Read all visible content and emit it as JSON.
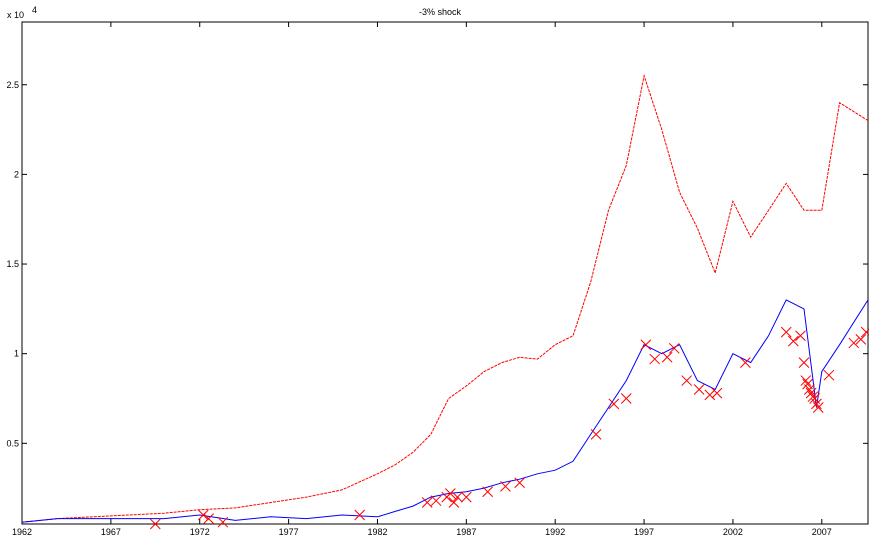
{
  "chart_data": {
    "type": "line",
    "title": "-3% shock",
    "xlabel": "",
    "ylabel": "",
    "y_exponent_label": "x 10",
    "y_exponent_power": "4",
    "x_ticks": [
      "1962",
      "1967",
      "1972",
      "1977",
      "1982",
      "1987",
      "1992",
      "1997",
      "2002",
      "2007"
    ],
    "x_tick_values": [
      1962,
      1967,
      1972,
      1977,
      1982,
      1987,
      1992,
      1997,
      2002,
      2007
    ],
    "y_ticks": [
      "0.5",
      "1",
      "1.5",
      "2",
      "2.5"
    ],
    "y_tick_values": [
      0.5,
      1,
      1.5,
      2,
      2.5
    ],
    "xlim": [
      1962,
      2009.6
    ],
    "ylim": [
      0.05,
      2.85
    ],
    "grid": false,
    "legend": "none",
    "colors": {
      "red_series": "#ff0000",
      "blue_series": "#0000ff",
      "marker": "#ff0000"
    },
    "series": [
      {
        "color": "#ff0000",
        "style": "dashed",
        "x": [
          1962,
          1964,
          1966,
          1968,
          1970,
          1972,
          1974,
          1976,
          1978,
          1980,
          1982,
          1983,
          1984,
          1985,
          1986,
          1987,
          1988,
          1989,
          1990,
          1991,
          1992,
          1993,
          1994,
          1995,
          1996,
          1997,
          1998,
          1999,
          2000,
          2001,
          2002,
          2003,
          2004,
          2005,
          2006,
          2007,
          2008,
          2009.6
        ],
        "y": [
          0.06,
          0.08,
          0.09,
          0.1,
          0.11,
          0.13,
          0.14,
          0.17,
          0.2,
          0.24,
          0.33,
          0.38,
          0.45,
          0.55,
          0.75,
          0.82,
          0.9,
          0.95,
          0.98,
          0.97,
          1.05,
          1.1,
          1.4,
          1.8,
          2.05,
          2.55,
          2.25,
          1.9,
          1.7,
          1.45,
          1.85,
          1.65,
          1.8,
          1.95,
          1.8,
          1.8,
          2.4,
          2.3
        ]
      },
      {
        "color": "#0000ff",
        "style": "solid",
        "x": [
          1962,
          1964,
          1966,
          1968,
          1970,
          1972,
          1974,
          1976,
          1978,
          1980,
          1982,
          1983,
          1984,
          1985,
          1986,
          1987,
          1988,
          1989,
          1990,
          1991,
          1992,
          1993,
          1994,
          1995,
          1996,
          1997,
          1998,
          1999,
          2000,
          2001,
          2002,
          2003,
          2004,
          2005,
          2006,
          2006.7,
          2007,
          2008,
          2009.6
        ],
        "y": [
          0.06,
          0.08,
          0.08,
          0.08,
          0.08,
          0.1,
          0.07,
          0.09,
          0.08,
          0.1,
          0.09,
          0.12,
          0.15,
          0.2,
          0.22,
          0.23,
          0.25,
          0.28,
          0.3,
          0.33,
          0.35,
          0.4,
          0.55,
          0.7,
          0.85,
          1.05,
          1.0,
          1.05,
          0.85,
          0.8,
          1.0,
          0.95,
          1.1,
          1.3,
          1.25,
          0.7,
          0.9,
          1.05,
          1.3
        ]
      }
    ],
    "shock_markers": {
      "symbol": "x",
      "x": [
        1969.5,
        1972.2,
        1972.5,
        1973.3,
        1981.0,
        1984.8,
        1985.3,
        1985.9,
        1986.1,
        1986.3,
        1986.5,
        1987.0,
        1988.2,
        1989.2,
        1990.0,
        1994.3,
        1995.3,
        1996.0,
        1997.1,
        1997.6,
        1998.3,
        1998.7,
        1999.4,
        2000.1,
        2000.7,
        2001.1,
        2002.7,
        2005.0,
        2005.4,
        2005.8,
        2006.0,
        2006.1,
        2006.2,
        2006.3,
        2006.4,
        2006.5,
        2006.6,
        2006.7,
        2006.8,
        2007.4,
        2008.8,
        2009.2,
        2009.5
      ],
      "y": [
        0.05,
        0.1,
        0.08,
        0.06,
        0.1,
        0.17,
        0.18,
        0.2,
        0.22,
        0.17,
        0.2,
        0.2,
        0.23,
        0.26,
        0.28,
        0.55,
        0.72,
        0.75,
        1.05,
        0.97,
        0.98,
        1.03,
        0.85,
        0.8,
        0.77,
        0.78,
        0.95,
        1.12,
        1.07,
        1.1,
        0.95,
        0.85,
        0.83,
        0.8,
        0.78,
        0.76,
        0.75,
        0.72,
        0.7,
        0.88,
        1.06,
        1.08,
        1.12
      ]
    }
  }
}
